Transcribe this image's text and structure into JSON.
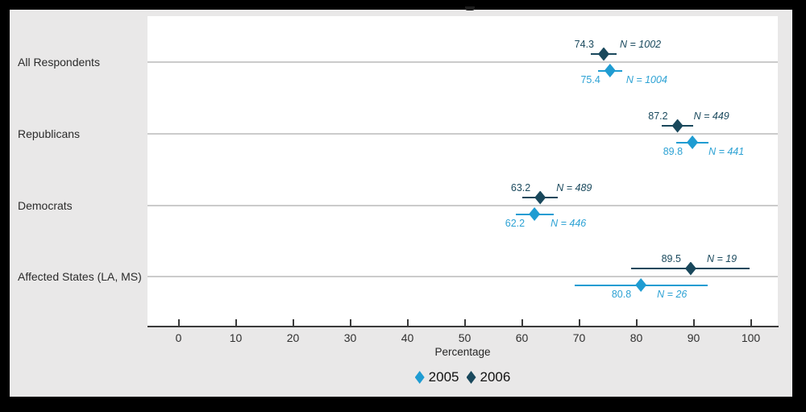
{
  "colors": {
    "frame_border": "#000000",
    "panel_bg": "#e9e8e8",
    "plot_bg": "#ffffff",
    "grid": "#cbcbcb",
    "axis": "#3b3b3b",
    "text": "#2b2b2b",
    "series_2005": "#1f9cd2",
    "series_2005_text": "#2da2d4",
    "series_2006": "#19485c",
    "series_2006_text": "#1b4a5e"
  },
  "chart_data": {
    "type": "scatter",
    "subtype": "dot-plot-with-confidence-intervals",
    "categories": [
      "All Respondents",
      "Republicans",
      "Democrats",
      "Affected States (LA, MS)"
    ],
    "xlabel": "Percentage",
    "x_ticks": [
      0,
      10,
      20,
      30,
      40,
      50,
      60,
      70,
      80,
      90,
      100
    ],
    "xlim": [
      -5,
      105
    ],
    "grid": "horizontal-category-lines",
    "legend_position": "bottom-center",
    "series": [
      {
        "name": "2005",
        "color": "#1f9cd2",
        "text_color": "#2da2d4",
        "points": [
          {
            "category": "All Respondents",
            "value": 75.4,
            "ci": [
              73.3,
              77.5
            ],
            "n_label": "N = 1004"
          },
          {
            "category": "Republicans",
            "value": 89.8,
            "ci": [
              87.0,
              92.6
            ],
            "n_label": "N = 441"
          },
          {
            "category": "Democrats",
            "value": 62.2,
            "ci": [
              58.9,
              65.5
            ],
            "n_label": "N = 446"
          },
          {
            "category": "Affected States (LA, MS)",
            "value": 80.8,
            "ci": [
              69.2,
              92.4
            ],
            "n_label": "N = 26"
          }
        ]
      },
      {
        "name": "2006",
        "color": "#19485c",
        "text_color": "#1b4a5e",
        "points": [
          {
            "category": "All Respondents",
            "value": 74.3,
            "ci": [
              72.1,
              76.5
            ],
            "n_label": "N = 1002"
          },
          {
            "category": "Republicans",
            "value": 87.2,
            "ci": [
              84.4,
              90.0
            ],
            "n_label": "N = 449"
          },
          {
            "category": "Democrats",
            "value": 63.2,
            "ci": [
              60.1,
              66.3
            ],
            "n_label": "N = 489"
          },
          {
            "category": "Affected States (LA, MS)",
            "value": 89.5,
            "ci": [
              79.1,
              99.8
            ],
            "n_label": "N = 19"
          }
        ]
      }
    ],
    "legend": [
      "2005",
      "2006"
    ]
  }
}
